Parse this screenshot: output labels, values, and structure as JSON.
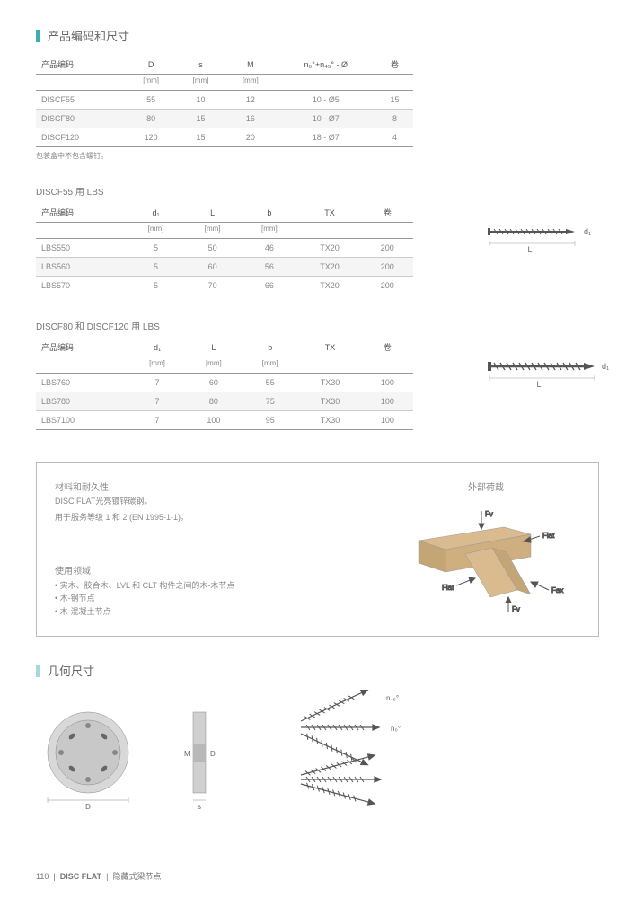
{
  "sections": {
    "prod_code": "产品编码和尺寸",
    "geometry": "几何尺寸"
  },
  "table1": {
    "headers": [
      "产品编码",
      "D",
      "s",
      "M",
      "n₀°+n₄₅° - Ø",
      "卷"
    ],
    "units": [
      "",
      "[mm]",
      "[mm]",
      "[mm]",
      "",
      ""
    ],
    "rows": [
      [
        "DISCF55",
        "55",
        "10",
        "12",
        "10 - Ø5",
        "15"
      ],
      [
        "DISCF80",
        "80",
        "15",
        "16",
        "10 - Ø7",
        "8"
      ],
      [
        "DISCF120",
        "120",
        "15",
        "20",
        "18 - Ø7",
        "4"
      ]
    ],
    "note": "包装盒中不包含螺钉。"
  },
  "table2": {
    "title": "DISCF55 用 LBS",
    "headers": [
      "产品编码",
      "d₁",
      "L",
      "b",
      "TX",
      "卷"
    ],
    "units": [
      "",
      "[mm]",
      "[mm]",
      "[mm]",
      "",
      ""
    ],
    "rows": [
      [
        "LBS550",
        "5",
        "50",
        "46",
        "TX20",
        "200"
      ],
      [
        "LBS560",
        "5",
        "60",
        "56",
        "TX20",
        "200"
      ],
      [
        "LBS570",
        "5",
        "70",
        "66",
        "TX20",
        "200"
      ]
    ]
  },
  "table3": {
    "title": "DISCF80 和 DISCF120 用 LBS",
    "headers": [
      "产品编码",
      "d₁",
      "L",
      "b",
      "TX",
      "卷"
    ],
    "units": [
      "",
      "[mm]",
      "[mm]",
      "[mm]",
      "",
      ""
    ],
    "rows": [
      [
        "LBS760",
        "7",
        "60",
        "55",
        "TX30",
        "100"
      ],
      [
        "LBS780",
        "7",
        "80",
        "75",
        "TX30",
        "100"
      ],
      [
        "LBS7100",
        "7",
        "100",
        "95",
        "TX30",
        "100"
      ]
    ]
  },
  "screw_labels": {
    "d1": "d₁",
    "L": "L"
  },
  "info_box": {
    "material_title": "材料和耐久性",
    "material_line1": "DISC FLAT光亮镀锌碳钢。",
    "material_line2": "用于服务等级 1 和 2 (EN 1995-1-1)。",
    "usage_title": "使用领域",
    "usage_items": [
      "实木、胶合木、LVL 和 CLT 构件之间的木-木节点",
      "木-钢节点",
      "木-混凝土节点"
    ],
    "forces_title": "外部荷载",
    "force_labels": [
      "Fv",
      "Flat",
      "Flat",
      "Fv",
      "Fax"
    ]
  },
  "geometry_labels": {
    "M": "M",
    "D": "D",
    "s": "s",
    "n45": "n₄₅°",
    "n0": "n₀°"
  },
  "footer": {
    "page": "110",
    "sep": "|",
    "product": "DISC FLAT",
    "desc": "隐藏式梁节点"
  },
  "colors": {
    "teal": "#3aafb9",
    "teal_light": "#a8d8dd",
    "text": "#333333",
    "muted": "#888888",
    "wood": "#d9bb8f",
    "wood_dark": "#c4a575"
  }
}
